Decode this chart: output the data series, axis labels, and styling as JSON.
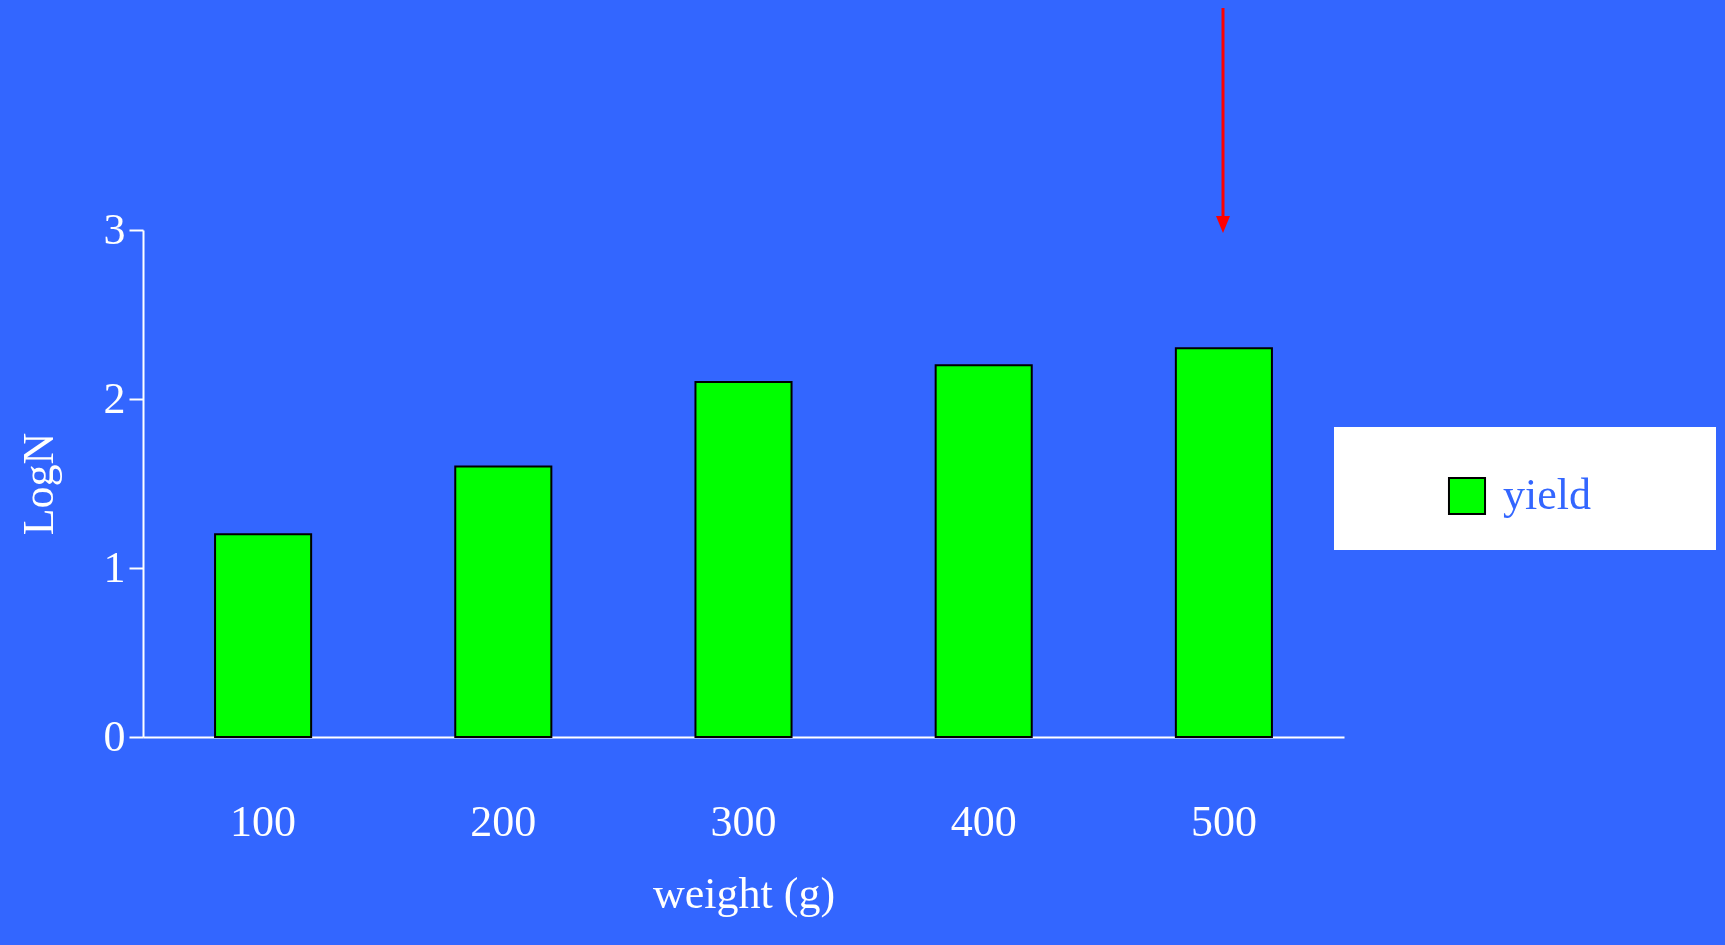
{
  "chart_data": {
    "type": "bar",
    "xlabel": "weight (g)",
    "ylabel": "LogN",
    "categories": [
      "100",
      "200",
      "300",
      "400",
      "500"
    ],
    "series": [
      {
        "name": "yield",
        "color": "#00ff00",
        "values": [
          1.2,
          1.6,
          2.1,
          2.2,
          2.3
        ]
      }
    ],
    "ylim": [
      0,
      3
    ],
    "yticks": [
      0,
      1,
      2,
      3
    ],
    "grid": false,
    "legend": "right"
  }
}
